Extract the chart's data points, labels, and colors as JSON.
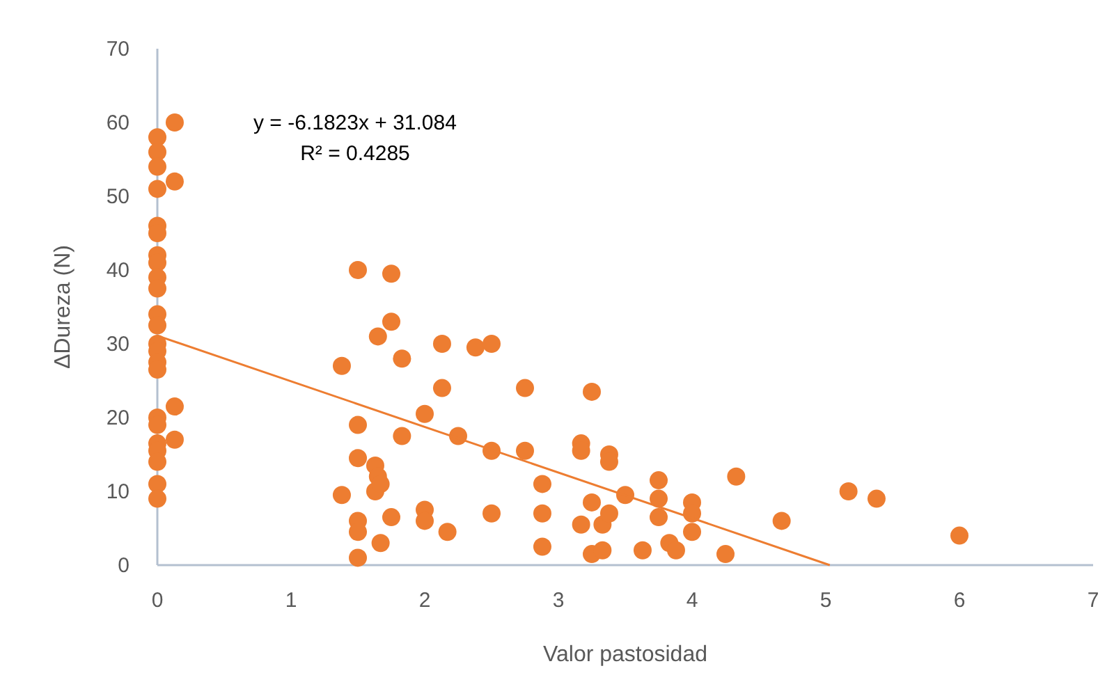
{
  "chart_data": {
    "type": "scatter",
    "xlabel": "Valor pastosidad",
    "ylabel": "ΔDureza (N)",
    "xlim": [
      0,
      7
    ],
    "xticks": [
      0,
      1,
      2,
      3,
      4,
      5,
      6,
      7
    ],
    "ylim": [
      0,
      70
    ],
    "yticks": [
      0,
      10,
      20,
      30,
      40,
      50,
      60,
      70
    ],
    "grid": false,
    "annotations": [
      "y = -6.1823x + 31.084",
      "R² = 0.4285"
    ],
    "series": [
      {
        "color": "#ed7d31",
        "marker": "circle",
        "x": [
          0,
          0,
          0,
          0,
          0,
          0,
          0,
          0,
          0,
          0,
          0,
          0,
          0,
          0,
          0,
          0,
          0,
          0,
          0,
          0,
          0,
          0,
          0,
          0.13,
          0.13,
          0.13,
          0.13,
          1.38,
          1.38,
          1.5,
          1.5,
          1.5,
          1.5,
          1.5,
          1.5,
          1.63,
          1.63,
          1.65,
          1.67,
          1.67,
          1.65,
          1.75,
          1.75,
          1.75,
          1.83,
          1.83,
          2,
          2,
          2,
          2.13,
          2.13,
          2.17,
          2.25,
          2.38,
          2.5,
          2.5,
          2.5,
          2.75,
          2.75,
          2.88,
          2.88,
          2.88,
          3.17,
          3.17,
          3.17,
          3.25,
          3.25,
          3.25,
          3.33,
          3.33,
          3.38,
          3.38,
          3.38,
          3.5,
          3.63,
          3.75,
          3.75,
          3.75,
          3.83,
          3.88,
          4,
          4,
          4,
          4.25,
          4.33,
          4.67,
          5.17,
          5.38,
          6
        ],
        "values": [
          58,
          56,
          54,
          51,
          46,
          45,
          42,
          41,
          39,
          37.5,
          34,
          32.5,
          30,
          29,
          27.5,
          26.5,
          20,
          19,
          16.5,
          15.5,
          14,
          11,
          9,
          60,
          52,
          21.5,
          17,
          27,
          9.5,
          40,
          19,
          14.5,
          6,
          4.5,
          1,
          13.5,
          10,
          12,
          11,
          3,
          31,
          39.5,
          33,
          6.5,
          28,
          17.5,
          20.5,
          7.5,
          6,
          30,
          24,
          4.5,
          17.5,
          29.5,
          30,
          15.5,
          7,
          24,
          15.5,
          11,
          7,
          2.5,
          16.5,
          15.5,
          5.5,
          23.5,
          8.5,
          1.5,
          5.5,
          2,
          15,
          14,
          7,
          9.5,
          2,
          11.5,
          9,
          6.5,
          3,
          2,
          8.5,
          7,
          4.5,
          1.5,
          12,
          6,
          10,
          9,
          4
        ]
      },
      {
        "type": "line",
        "color": "#ed7d31",
        "x": [
          0,
          5.03
        ],
        "values": [
          31.1,
          0
        ]
      }
    ]
  }
}
